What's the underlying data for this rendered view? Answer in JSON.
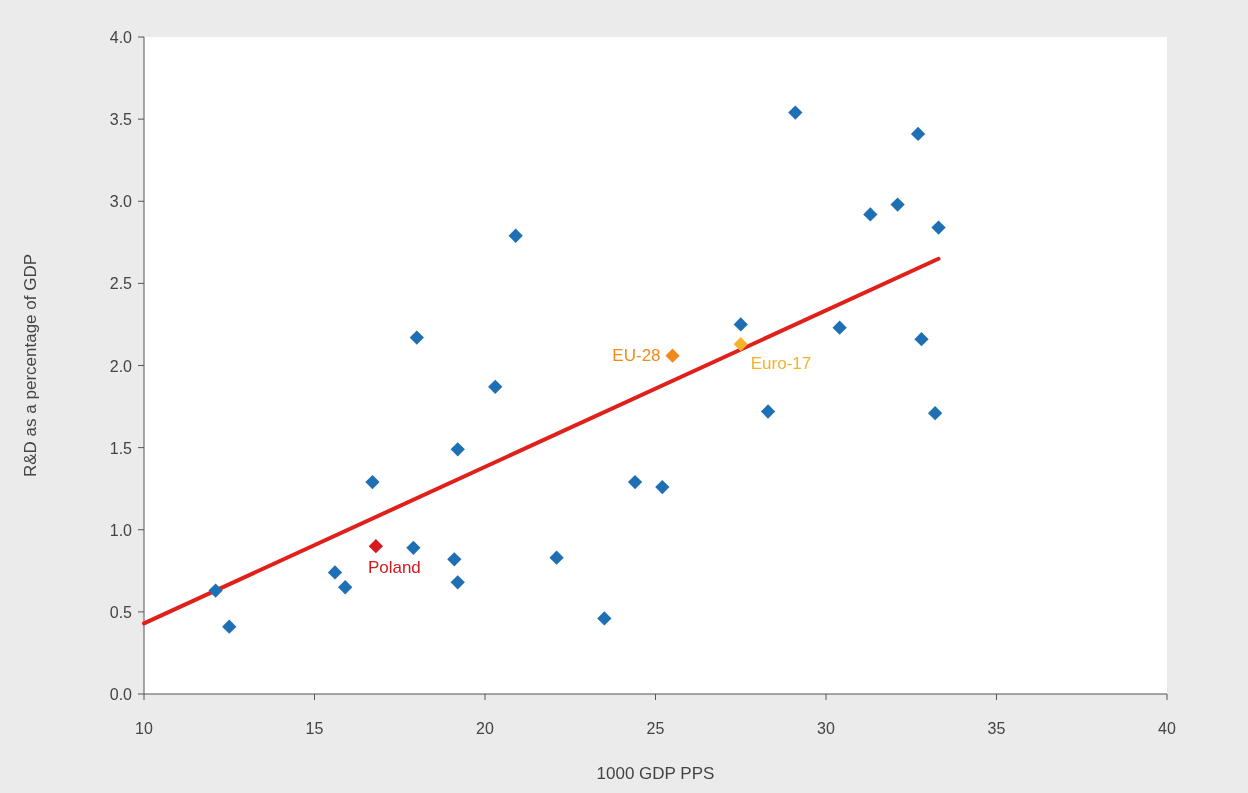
{
  "chart_data": {
    "type": "scatter",
    "xlabel": "1000 GDP PPS",
    "ylabel": "R&D as a percentage of GDP",
    "xlim": [
      10,
      40
    ],
    "xticks": [
      10,
      15,
      20,
      25,
      30,
      35,
      40
    ],
    "ylim": [
      0,
      4
    ],
    "yticks": [
      {
        "value": 0,
        "label": "0.0"
      },
      {
        "value": 0.5,
        "label": "0.5"
      },
      {
        "value": 1,
        "label": "1.0"
      },
      {
        "value": 1.5,
        "label": "1.5"
      },
      {
        "value": 2,
        "label": "2.0"
      },
      {
        "value": 2.5,
        "label": "2.5"
      },
      {
        "value": 3,
        "label": "3.0"
      },
      {
        "value": 3.5,
        "label": "3.5"
      },
      {
        "value": 4,
        "label": "4.0"
      }
    ],
    "series": [
      {
        "type": "line",
        "marker": "none",
        "color": "#e0201b",
        "x": [
          10,
          33.3
        ],
        "values": [
          0.43,
          2.65
        ]
      },
      {
        "marker": "diamond",
        "color": "#1f6fb5",
        "x": [
          12.1,
          12.5,
          15.6,
          15.9,
          16.7,
          17.9,
          18.0,
          19.1,
          19.2,
          19.2,
          20.3,
          20.9,
          22.1,
          23.5,
          24.4,
          25.2,
          27.5,
          28.3,
          29.1,
          30.4,
          31.3,
          32.1,
          32.7,
          32.8,
          33.2,
          33.3
        ],
        "values": [
          0.63,
          0.41,
          0.74,
          0.65,
          1.29,
          0.89,
          2.17,
          0.82,
          1.49,
          0.68,
          1.87,
          2.79,
          0.83,
          0.46,
          1.29,
          1.26,
          2.25,
          1.72,
          3.54,
          2.23,
          2.92,
          2.98,
          3.41,
          2.16,
          1.71,
          2.84
        ]
      },
      {
        "name": "Poland",
        "marker": "diamond",
        "color": "#d7191c",
        "x": [
          16.8
        ],
        "values": [
          0.9
        ]
      },
      {
        "name": "EU-28",
        "marker": "diamond",
        "color": "#f08a1c",
        "x": [
          25.5
        ],
        "values": [
          2.06
        ]
      },
      {
        "name": "Euro-17",
        "marker": "diamond",
        "color": "#f5b22a",
        "x": [
          27.5
        ],
        "values": [
          2.13
        ]
      }
    ]
  }
}
